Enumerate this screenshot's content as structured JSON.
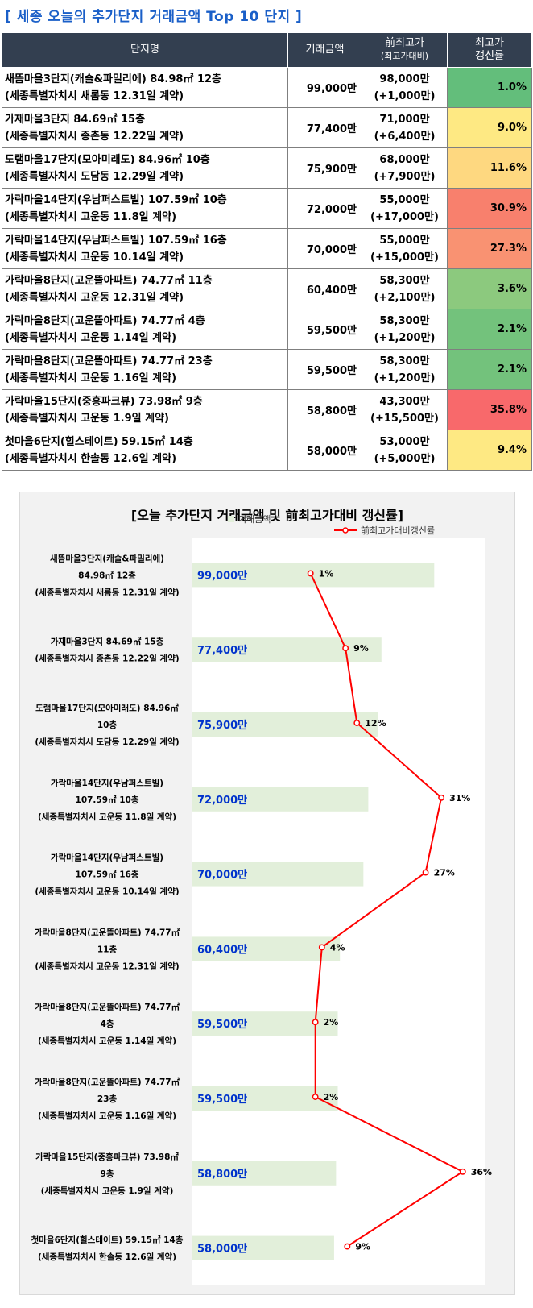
{
  "page_title": "[ 세종 오늘의 추가단지 거래금액 Top 10 단지 ]",
  "table": {
    "headers": {
      "name": "단지명",
      "price": "거래금액",
      "prev_line1": "前최고가",
      "prev_line2": "(최고가대비)",
      "rate_line1": "최고가",
      "rate_line2": "갱신률"
    },
    "rows": [
      {
        "line1": "새뜸마을3단지(캐슬&파밀리에) 84.98㎡ 12층",
        "line2": "(세종특별자치시  새롬동 12.31일 계약)",
        "price": "99,000만",
        "prev": "98,000만",
        "prev_diff": "(+1,000만)",
        "rate": "1.0%",
        "color": "#63be7b"
      },
      {
        "line1": "가재마을3단지 84.69㎡ 15층",
        "line2": "(세종특별자치시  종촌동 12.22일 계약)",
        "price": "77,400만",
        "prev": "71,000만",
        "prev_diff": "(+6,400만)",
        "rate": "9.0%",
        "color": "#fee983"
      },
      {
        "line1": "도램마을17단지(모아미래도) 84.96㎡ 10층",
        "line2": "(세종특별자치시  도담동 12.29일 계약)",
        "price": "75,900만",
        "prev": "68,000만",
        "prev_diff": "(+7,900만)",
        "rate": "11.6%",
        "color": "#fed880"
      },
      {
        "line1": "가락마을14단지(우남퍼스트빌) 107.59㎡ 10층",
        "line2": "(세종특별자치시  고운동 11.8일 계약)",
        "price": "72,000만",
        "prev": "55,000만",
        "prev_diff": "(+17,000만)",
        "rate": "30.9%",
        "color": "#f8806d"
      },
      {
        "line1": "가락마을14단지(우남퍼스트빌) 107.59㎡ 16층",
        "line2": "(세종특별자치시  고운동 10.14일 계약)",
        "price": "70,000만",
        "prev": "55,000만",
        "prev_diff": "(+15,000만)",
        "rate": "27.3%",
        "color": "#f99272"
      },
      {
        "line1": "가락마을8단지(고운뜰아파트) 74.77㎡ 11층",
        "line2": "(세종특별자치시  고운동 12.31일 계약)",
        "price": "60,400만",
        "prev": "58,300만",
        "prev_diff": "(+2,100만)",
        "rate": "3.6%",
        "color": "#8cc97e"
      },
      {
        "line1": "가락마을8단지(고운뜰아파트) 74.77㎡ 4층",
        "line2": "(세종특별자치시  고운동 1.14일 계약)",
        "price": "59,500만",
        "prev": "58,300만",
        "prev_diff": "(+1,200만)",
        "rate": "2.1%",
        "color": "#73c27c"
      },
      {
        "line1": "가락마을8단지(고운뜰아파트) 74.77㎡ 23층",
        "line2": "(세종특별자치시  고운동 1.16일 계약)",
        "price": "59,500만",
        "prev": "58,300만",
        "prev_diff": "(+1,200만)",
        "rate": "2.1%",
        "color": "#73c27c"
      },
      {
        "line1": "가락마을15단지(중흥파크뷰) 73.98㎡ 9층",
        "line2": "(세종특별자치시  고운동 1.9일 계약)",
        "price": "58,800만",
        "prev": "43,300만",
        "prev_diff": "(+15,500만)",
        "rate": "35.8%",
        "color": "#f8696b"
      },
      {
        "line1": "첫마을6단지(힐스테이트) 59.15㎡ 14층",
        "line2": "(세종특별자치시  한솔동 12.6일 계약)",
        "price": "58,000만",
        "prev": "53,000만",
        "prev_diff": "(+5,000만)",
        "rate": "9.4%",
        "color": "#fee983"
      }
    ]
  },
  "chart_data": {
    "type": "bar",
    "orientation": "horizontal",
    "title": "[오늘 추가단지 거래금액 및 前최고가대비 갱신률]",
    "legend": [
      "거래금액",
      "前최고가대비갱신률"
    ],
    "legend_position": "top",
    "grid": false,
    "bar_color": "#e2efda",
    "line_color": "#ff0000",
    "value_label_color": "#0033cc",
    "categories": [
      [
        "새뜸마을3단지(캐슬&파밀리에)",
        "84.98㎡ 12층",
        "(세종특별자치시  새롬동 12.31일 계약)"
      ],
      [
        "가재마을3단지 84.69㎡ 15층",
        "(세종특별자치시  종촌동 12.22일 계약)"
      ],
      [
        "도램마을17단지(모아미래도) 84.96㎡",
        "10층",
        "(세종특별자치시  도담동 12.29일 계약)"
      ],
      [
        "가락마을14단지(우남퍼스트빌)",
        "107.59㎡ 10층",
        "(세종특별자치시  고운동 11.8일 계약)"
      ],
      [
        "가락마을14단지(우남퍼스트빌)",
        "107.59㎡ 16층",
        "(세종특별자치시  고운동 10.14일 계약)"
      ],
      [
        "가락마을8단지(고운뜰아파트) 74.77㎡",
        "11층",
        "(세종특별자치시  고운동 12.31일 계약)"
      ],
      [
        "가락마을8단지(고운뜰아파트) 74.77㎡",
        "4층",
        "(세종특별자치시  고운동 1.14일 계약)"
      ],
      [
        "가락마을8단지(고운뜰아파트) 74.77㎡",
        "23층",
        "(세종특별자치시  고운동 1.16일 계약)"
      ],
      [
        "가락마을15단지(중흥파크뷰) 73.98㎡",
        "9층",
        "(세종특별자치시  고운동 1.9일 계약)"
      ],
      [
        "첫마을6단지(힐스테이트) 59.15㎡ 14층",
        "(세종특별자치시  한솔동 12.6일 계약)"
      ]
    ],
    "series": [
      {
        "name": "거래금액",
        "type": "bar",
        "values": [
          99000,
          77400,
          75900,
          72000,
          70000,
          60400,
          59500,
          59500,
          58800,
          58000
        ],
        "labels": [
          "99,000만",
          "77,400만",
          "75,900만",
          "72,000만",
          "70,000만",
          "60,400만",
          "59,500만",
          "59,500만",
          "58,800만",
          "58,000만"
        ]
      },
      {
        "name": "前최고가대비갱신률",
        "type": "line",
        "values": [
          1.0,
          9.0,
          11.6,
          30.9,
          27.3,
          3.6,
          2.1,
          2.1,
          35.8,
          9.4
        ],
        "labels": [
          "1%",
          "9%",
          "12%",
          "31%",
          "27%",
          "4%",
          "2%",
          "2%",
          "36%",
          "9%"
        ]
      }
    ],
    "bar_axis_max": 120000,
    "line_axis_range": [
      -26,
      41
    ]
  }
}
